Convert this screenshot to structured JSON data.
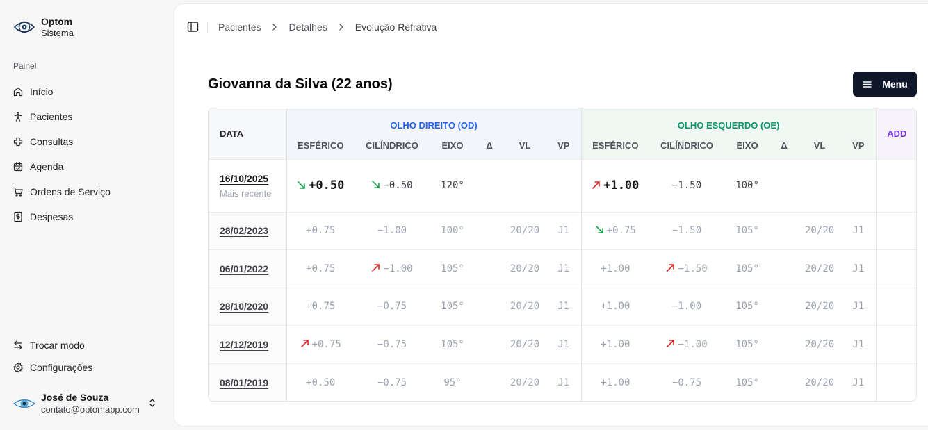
{
  "brand": {
    "name": "Optom",
    "subtitle": "Sistema",
    "logo_icon": "eye-target-icon"
  },
  "sidebar": {
    "group_label": "Painel",
    "items": [
      {
        "label": "Início",
        "icon": "home-icon"
      },
      {
        "label": "Pacientes",
        "icon": "person-icon"
      },
      {
        "label": "Consultas",
        "icon": "medical-cross-icon"
      },
      {
        "label": "Agenda",
        "icon": "calendar-icon"
      },
      {
        "label": "Ordens de Serviço",
        "icon": "cart-icon"
      },
      {
        "label": "Despesas",
        "icon": "receipt-icon"
      }
    ],
    "bottom_items": [
      {
        "label": "Trocar modo",
        "icon": "switch-arrows-icon"
      },
      {
        "label": "Configurações",
        "icon": "gear-icon"
      }
    ],
    "user": {
      "name": "José de Souza",
      "email": "contato@optomapp.com"
    }
  },
  "breadcrumb": [
    "Pacientes",
    "Detalhes",
    "Evolução Refrativa"
  ],
  "page": {
    "title": "Giovanna da Silva (22 anos)",
    "menu_label": "Menu"
  },
  "table": {
    "date_header": "DATA",
    "od_header": "OLHO DIREITO (OD)",
    "oe_header": "OLHO ESQUERDO (OE)",
    "add_header": "ADD",
    "columns": [
      "ESFÉRICO",
      "CILÍNDRICO",
      "EIXO",
      "Δ",
      "VL",
      "VP"
    ],
    "rows": [
      {
        "date": "16/10/2025",
        "note": "Mais recente",
        "od": {
          "esf": "+0.50",
          "esf_trend": "down",
          "cil": "−0.50",
          "cil_trend": "down",
          "eixo": "120°",
          "delta": "",
          "vl": "",
          "vp": ""
        },
        "oe": {
          "esf": "+1.00",
          "esf_trend": "up",
          "cil": "−1.50",
          "cil_trend": "",
          "eixo": "100°",
          "delta": "",
          "vl": "",
          "vp": ""
        },
        "add": ""
      },
      {
        "date": "28/02/2023",
        "note": "",
        "od": {
          "esf": "+0.75",
          "esf_trend": "",
          "cil": "−1.00",
          "cil_trend": "",
          "eixo": "100°",
          "delta": "",
          "vl": "20/20",
          "vp": "J1"
        },
        "oe": {
          "esf": "+0.75",
          "esf_trend": "down",
          "cil": "−1.50",
          "cil_trend": "",
          "eixo": "105°",
          "delta": "",
          "vl": "20/20",
          "vp": "J1"
        },
        "add": ""
      },
      {
        "date": "06/01/2022",
        "note": "",
        "od": {
          "esf": "+0.75",
          "esf_trend": "",
          "cil": "−1.00",
          "cil_trend": "up",
          "eixo": "105°",
          "delta": "",
          "vl": "20/20",
          "vp": "J1"
        },
        "oe": {
          "esf": "+1.00",
          "esf_trend": "",
          "cil": "−1.50",
          "cil_trend": "up",
          "eixo": "105°",
          "delta": "",
          "vl": "20/20",
          "vp": "J1"
        },
        "add": ""
      },
      {
        "date": "28/10/2020",
        "note": "",
        "od": {
          "esf": "+0.75",
          "esf_trend": "",
          "cil": "−0.75",
          "cil_trend": "",
          "eixo": "105°",
          "delta": "",
          "vl": "20/20",
          "vp": "J1"
        },
        "oe": {
          "esf": "+1.00",
          "esf_trend": "",
          "cil": "−1.00",
          "cil_trend": "",
          "eixo": "105°",
          "delta": "",
          "vl": "20/20",
          "vp": "J1"
        },
        "add": ""
      },
      {
        "date": "12/12/2019",
        "note": "",
        "od": {
          "esf": "+0.75",
          "esf_trend": "up",
          "cil": "−0.75",
          "cil_trend": "",
          "eixo": "105°",
          "delta": "",
          "vl": "20/20",
          "vp": "J1"
        },
        "oe": {
          "esf": "+1.00",
          "esf_trend": "",
          "cil": "−1.00",
          "cil_trend": "up",
          "eixo": "105°",
          "delta": "",
          "vl": "20/20",
          "vp": "J1"
        },
        "add": ""
      },
      {
        "date": "08/01/2019",
        "note": "",
        "od": {
          "esf": "+0.50",
          "esf_trend": "",
          "cil": "−0.75",
          "cil_trend": "",
          "eixo": "95°",
          "delta": "",
          "vl": "20/20",
          "vp": "J1"
        },
        "oe": {
          "esf": "+1.00",
          "esf_trend": "",
          "cil": "−0.75",
          "cil_trend": "",
          "eixo": "105°",
          "delta": "",
          "vl": "20/20",
          "vp": "J1"
        },
        "add": ""
      }
    ]
  },
  "colors": {
    "od_accent": "#2563eb",
    "oe_accent": "#059669",
    "add_accent": "#7c3aed",
    "trend_down": "#16a34a",
    "trend_up": "#dc2626",
    "menu_bg": "#0f172a"
  }
}
